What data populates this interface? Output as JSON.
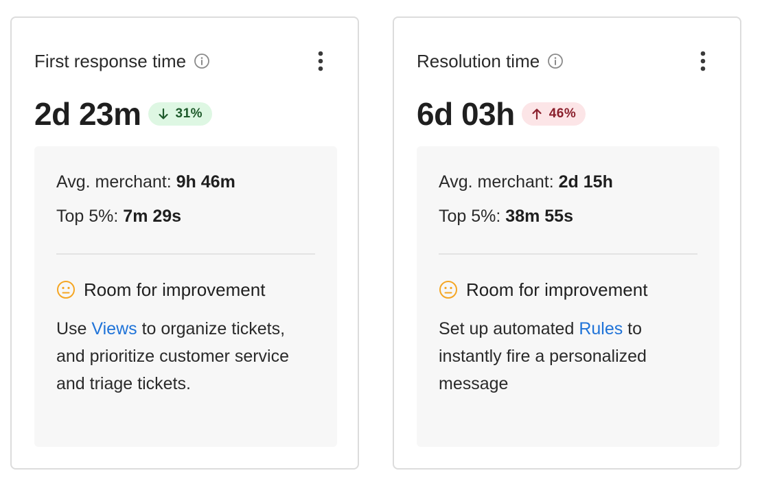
{
  "cards": [
    {
      "title": "First response time",
      "value": "2d 23m",
      "trend": {
        "direction": "down",
        "percent": "31%",
        "status": "good"
      },
      "avg_merchant_label": "Avg. merchant:",
      "avg_merchant_value": "9h 46m",
      "top5_label": "Top 5%:",
      "top5_value": "7m 29s",
      "advice_title": "Room for improvement",
      "advice_before": "Use ",
      "advice_link": "Views",
      "advice_after": " to organize tickets, and prioritize customer service and triage tickets."
    },
    {
      "title": "Resolution time",
      "value": "6d 03h",
      "trend": {
        "direction": "up",
        "percent": "46%",
        "status": "bad"
      },
      "avg_merchant_label": "Avg. merchant:",
      "avg_merchant_value": "2d 15h",
      "top5_label": "Top 5%:",
      "top5_value": "38m 55s",
      "advice_title": "Room for improvement",
      "advice_before": "Set up automated ",
      "advice_link": "Rules",
      "advice_after": " to instantly fire a personalized message"
    }
  ],
  "icons": {
    "info": "info-circle-icon",
    "more": "more-vertical-icon",
    "trend_down": "arrow-down-icon",
    "trend_up": "arrow-up-icon",
    "advice": "neutral-face-icon"
  },
  "colors": {
    "good_badge_bg": "#def7e3",
    "good_badge_text": "#1e5a2b",
    "bad_badge_bg": "#fce5e7",
    "bad_badge_text": "#8a1f2c",
    "link": "#1f73d8",
    "face": "#f5a623",
    "panel_bg": "#f7f7f7"
  }
}
